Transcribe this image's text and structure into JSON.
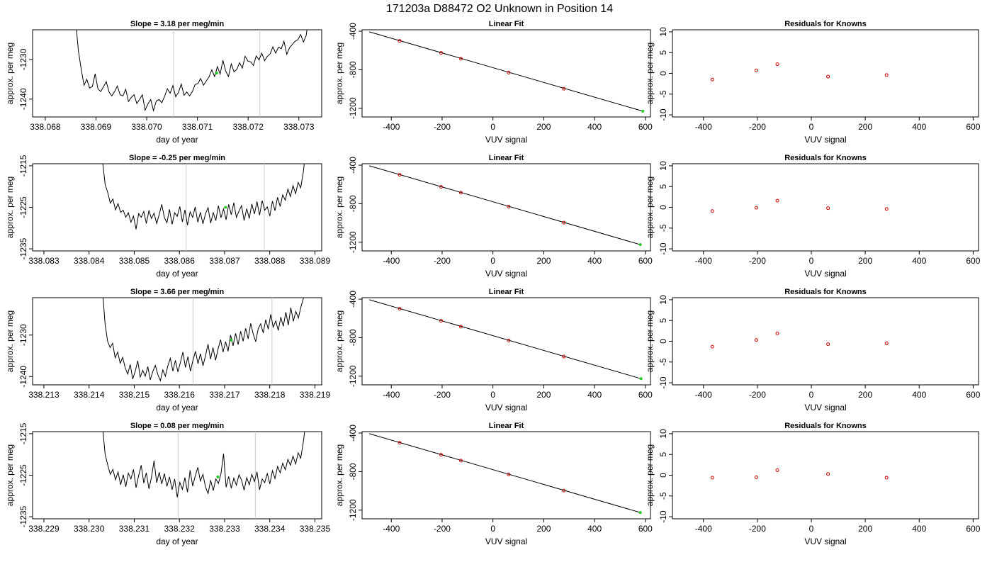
{
  "title": "171203a     D88472   O2 Unknown in Position  14",
  "colors": {
    "trace": "#000000",
    "known_marker": "#cc0000",
    "unknown_marker": "#22cc22",
    "marker_line": "#c8c8c8",
    "fit_line": "#000000"
  },
  "rows": [
    {
      "slope_title": "Slope =  3.18  per meg/min",
      "time": {
        "xlabel": "day of year",
        "ylabel": "approx. per meg",
        "xlim": [
          338.06775,
          338.07345
        ],
        "ylim": [
          -1244.5,
          -1222.5
        ],
        "xticks": [
          "338.068",
          "338.069",
          "338.070",
          "338.071",
          "338.072",
          "338.073"
        ],
        "yticks": [
          "-1240",
          "-1230"
        ],
        "x_start": 338.0686,
        "x_end": 338.0732,
        "trace": [
          -1220.5,
          -1228.0,
          -1232.5,
          -1236.5,
          -1235.0,
          -1237.2,
          -1236.8,
          -1233.6,
          -1237.4,
          -1238.1,
          -1236.9,
          -1235.6,
          -1238.2,
          -1239.2,
          -1238.1,
          -1236.7,
          -1238.9,
          -1239.2,
          -1237.5,
          -1240.6,
          -1239.6,
          -1238.9,
          -1241.1,
          -1240.1,
          -1238.9,
          -1242.8,
          -1241.2,
          -1240.1,
          -1242.9,
          -1240.5,
          -1240.1,
          -1240.9,
          -1239.3,
          -1237.4,
          -1238.5,
          -1236.6,
          -1239.4,
          -1238.3,
          -1236.2,
          -1239.0,
          -1238.2,
          -1239.2,
          -1238.1,
          -1236.3,
          -1236.1,
          -1234.8,
          -1236.5,
          -1235.4,
          -1234.4,
          -1232.6,
          -1234.3,
          -1231.8,
          -1233.7,
          -1230.2,
          -1232.9,
          -1234.3,
          -1231.1,
          -1233.1,
          -1232.5,
          -1230.8,
          -1232.2,
          -1229.2,
          -1230.4,
          -1230.6,
          -1231.5,
          -1229.1,
          -1230.1,
          -1228.4,
          -1230.3,
          -1229.2,
          -1228.6,
          -1226.8,
          -1228.4,
          -1226.9,
          -1227.3,
          -1225.4,
          -1228.7,
          -1227.0,
          -1226.2,
          -1225.4,
          -1225.0,
          -1223.7,
          -1225.6,
          -1223.9,
          -1218.5
        ],
        "vlines": [
          338.07053,
          338.07223
        ],
        "unknown_point": {
          "x": 338.07138,
          "y": -1233.4
        }
      },
      "fit": {
        "title": "Linear Fit",
        "xlabel": "VUV signal",
        "ylabel": "approx. per meg",
        "xlim": [
          -515,
          620
        ],
        "ylim": [
          -1290,
          -385
        ],
        "xticks": [
          -400,
          -200,
          0,
          200,
          400,
          600
        ],
        "yticks": [
          -400,
          -800,
          -1200
        ],
        "line": [
          [
            -487,
            -406
          ],
          [
            590,
            -1230
          ]
        ],
        "knowns": [
          [
            -367,
            -500
          ],
          [
            -204,
            -625
          ],
          [
            -126,
            -686
          ],
          [
            62,
            -830
          ],
          [
            279,
            -997
          ]
        ],
        "unknown": [
          590,
          -1230
        ]
      },
      "resid": {
        "title": "Residuals for Knowns",
        "xlabel": "VUV signal",
        "ylabel": "approx. per meg",
        "xlim": [
          -515,
          620
        ],
        "ylim": [
          -10.5,
          10.5
        ],
        "xticks": [
          -400,
          -200,
          0,
          200,
          400,
          600
        ],
        "yticks": [
          -10,
          -5,
          0,
          5,
          10
        ],
        "points": [
          [
            -367,
            -1.5
          ],
          [
            -204,
            0.7
          ],
          [
            -126,
            2.2
          ],
          [
            62,
            -0.8
          ],
          [
            279,
            -0.4
          ]
        ]
      }
    },
    {
      "slope_title": "Slope =  -0.25  per meg/min",
      "time": {
        "xlabel": "day of year",
        "ylabel": "approx. per meg",
        "xlim": [
          338.08275,
          338.08915
        ],
        "ylim": [
          -1235.5,
          -1214.5
        ],
        "xticks": [
          "338.083",
          "338.084",
          "338.085",
          "338.086",
          "338.087",
          "338.088",
          "338.089"
        ],
        "yticks": [
          "-1235",
          "-1225",
          "-1215"
        ],
        "x_start": 338.0843,
        "x_end": 338.0888,
        "trace": [
          -1214.0,
          -1219.5,
          -1221.5,
          -1224.0,
          -1223.0,
          -1225.6,
          -1224.1,
          -1226.2,
          -1225.7,
          -1227.4,
          -1226.3,
          -1228.6,
          -1227.1,
          -1230.3,
          -1226.5,
          -1227.4,
          -1226.0,
          -1228.9,
          -1225.8,
          -1227.7,
          -1226.4,
          -1228.9,
          -1226.7,
          -1224.3,
          -1227.5,
          -1228.7,
          -1225.5,
          -1229.1,
          -1226.3,
          -1227.2,
          -1224.8,
          -1228.5,
          -1225.6,
          -1229.3,
          -1226.1,
          -1227.4,
          -1224.9,
          -1228.6,
          -1226.2,
          -1229.0,
          -1226.5,
          -1225.1,
          -1228.8,
          -1226.3,
          -1228.2,
          -1224.6,
          -1227.5,
          -1225.4,
          -1228.0,
          -1224.3,
          -1226.8,
          -1223.9,
          -1227.4,
          -1225.9,
          -1224.6,
          -1228.2,
          -1225.3,
          -1227.7,
          -1224.2,
          -1226.6,
          -1223.6,
          -1226.9,
          -1223.4,
          -1225.7,
          -1224.9,
          -1227.1,
          -1223.5,
          -1225.8,
          -1222.6,
          -1224.8,
          -1222.0,
          -1223.3,
          -1220.6,
          -1222.4,
          -1219.8,
          -1221.7,
          -1219.0,
          -1220.3,
          -1216.5,
          -1211.0
        ],
        "vlines": [
          338.08615,
          338.08788
        ],
        "unknown_point": {
          "x": 338.08702,
          "y": -1225.0
        }
      },
      "fit": {
        "title": "Linear Fit",
        "xlabel": "VUV signal",
        "ylabel": "approx. per meg",
        "xlim": [
          -515,
          620
        ],
        "ylim": [
          -1290,
          -385
        ],
        "xticks": [
          -400,
          -200,
          0,
          200,
          400,
          600
        ],
        "yticks": [
          -400,
          -800,
          -1200
        ],
        "line": [
          [
            -487,
            -406
          ],
          [
            580,
            -1225
          ]
        ],
        "knowns": [
          [
            -367,
            -500
          ],
          [
            -204,
            -625
          ],
          [
            -126,
            -686
          ],
          [
            62,
            -830
          ],
          [
            279,
            -997
          ]
        ],
        "unknown": [
          580,
          -1225
        ]
      },
      "resid": {
        "title": "Residuals for Knowns",
        "xlabel": "VUV signal",
        "ylabel": "approx. per meg",
        "xlim": [
          -515,
          620
        ],
        "ylim": [
          -10.5,
          10.5
        ],
        "xticks": [
          -400,
          -200,
          0,
          200,
          400,
          600
        ],
        "yticks": [
          -10,
          -5,
          0,
          5,
          10
        ],
        "points": [
          [
            -367,
            -0.9
          ],
          [
            -204,
            -0.1
          ],
          [
            -126,
            1.6
          ],
          [
            62,
            -0.2
          ],
          [
            279,
            -0.4
          ]
        ]
      }
    },
    {
      "slope_title": "Slope =  3.66  per meg/min",
      "time": {
        "xlabel": "day of year",
        "ylabel": "approx. per meg",
        "xlim": [
          338.21275,
          338.21915
        ],
        "ylim": [
          -1242.0,
          -1221.0
        ],
        "xticks": [
          "338.213",
          "338.214",
          "338.215",
          "338.216",
          "338.217",
          "338.218",
          "338.219"
        ],
        "yticks": [
          "-1240",
          "-1230"
        ],
        "x_start": 338.2143,
        "x_end": 338.2188,
        "trace": [
          -1219.5,
          -1227.5,
          -1231.5,
          -1233.0,
          -1232.0,
          -1235.5,
          -1234.1,
          -1236.8,
          -1235.4,
          -1237.9,
          -1239.4,
          -1237.1,
          -1240.6,
          -1238.7,
          -1236.2,
          -1240.1,
          -1238.5,
          -1239.9,
          -1237.6,
          -1240.8,
          -1238.8,
          -1237.3,
          -1239.5,
          -1241.0,
          -1238.4,
          -1239.9,
          -1237.4,
          -1235.6,
          -1238.7,
          -1236.1,
          -1238.9,
          -1236.6,
          -1234.1,
          -1237.8,
          -1235.2,
          -1238.7,
          -1236.1,
          -1233.9,
          -1236.9,
          -1234.5,
          -1237.4,
          -1235.0,
          -1232.2,
          -1235.8,
          -1233.0,
          -1236.1,
          -1233.4,
          -1231.1,
          -1234.1,
          -1231.6,
          -1233.9,
          -1230.0,
          -1232.6,
          -1229.6,
          -1232.3,
          -1229.1,
          -1231.5,
          -1228.4,
          -1230.9,
          -1227.2,
          -1229.7,
          -1231.6,
          -1228.5,
          -1227.3,
          -1229.5,
          -1226.3,
          -1228.6,
          -1225.0,
          -1228.1,
          -1226.6,
          -1228.9,
          -1225.7,
          -1227.9,
          -1224.5,
          -1227.6,
          -1223.4,
          -1226.7,
          -1224.3,
          -1225.9,
          -1223.3,
          -1221.2,
          -1219.0
        ],
        "vlines": [
          338.2163,
          338.21805
        ],
        "unknown_point": {
          "x": 338.21715,
          "y": -1231.2
        }
      },
      "fit": {
        "title": "Linear Fit",
        "xlabel": "VUV signal",
        "ylabel": "approx. per meg",
        "xlim": [
          -515,
          620
        ],
        "ylim": [
          -1290,
          -385
        ],
        "xticks": [
          -400,
          -200,
          0,
          200,
          400,
          600
        ],
        "yticks": [
          -400,
          -800,
          -1200
        ],
        "line": [
          [
            -487,
            -406
          ],
          [
            583,
            -1226
          ]
        ],
        "knowns": [
          [
            -367,
            -500
          ],
          [
            -204,
            -625
          ],
          [
            -126,
            -686
          ],
          [
            62,
            -830
          ],
          [
            279,
            -997
          ]
        ],
        "unknown": [
          583,
          -1226
        ]
      },
      "resid": {
        "title": "Residuals for Knowns",
        "xlabel": "VUV signal",
        "ylabel": "approx. per meg",
        "xlim": [
          -515,
          620
        ],
        "ylim": [
          -10.5,
          10.5
        ],
        "xticks": [
          -400,
          -200,
          0,
          200,
          400,
          600
        ],
        "yticks": [
          -10,
          -5,
          0,
          5,
          10
        ],
        "points": [
          [
            -367,
            -1.3
          ],
          [
            -204,
            0.3
          ],
          [
            -126,
            1.9
          ],
          [
            62,
            -0.7
          ],
          [
            279,
            -0.5
          ]
        ]
      }
    },
    {
      "slope_title": "Slope =  0.08  per meg/min",
      "time": {
        "xlabel": "day of year",
        "ylabel": "approx. per meg",
        "xlim": [
          338.22875,
          338.23515
        ],
        "ylim": [
          -1235.5,
          -1214.5
        ],
        "xticks": [
          "338.229",
          "338.230",
          "338.231",
          "338.232",
          "338.233",
          "338.234",
          "338.235"
        ],
        "yticks": [
          "-1235",
          "-1225",
          "-1215"
        ],
        "x_start": 338.2303,
        "x_end": 338.2348,
        "trace": [
          -1213.5,
          -1220.0,
          -1222.6,
          -1224.8,
          -1223.6,
          -1226.1,
          -1224.2,
          -1227.3,
          -1224.9,
          -1227.8,
          -1224.5,
          -1225.9,
          -1223.6,
          -1228.0,
          -1225.1,
          -1222.6,
          -1226.9,
          -1224.4,
          -1228.3,
          -1225.5,
          -1221.5,
          -1226.8,
          -1224.3,
          -1227.1,
          -1224.6,
          -1227.7,
          -1225.4,
          -1228.5,
          -1225.9,
          -1230.3,
          -1226.7,
          -1228.4,
          -1225.6,
          -1229.1,
          -1223.8,
          -1227.6,
          -1225.2,
          -1223.1,
          -1226.4,
          -1224.8,
          -1227.9,
          -1229.4,
          -1226.2,
          -1228.7,
          -1225.9,
          -1227.0,
          -1224.6,
          -1219.8,
          -1227.9,
          -1225.3,
          -1228.1,
          -1225.7,
          -1227.4,
          -1224.9,
          -1226.2,
          -1228.6,
          -1225.6,
          -1227.3,
          -1224.8,
          -1226.5,
          -1224.2,
          -1228.5,
          -1225.9,
          -1226.8,
          -1224.6,
          -1227.1,
          -1223.9,
          -1225.8,
          -1222.9,
          -1224.4,
          -1222.1,
          -1223.7,
          -1221.2,
          -1222.6,
          -1220.4,
          -1222.3,
          -1219.6,
          -1220.9,
          -1217.0,
          -1212.0
        ],
        "vlines": [
          338.23197,
          338.23368
        ],
        "unknown_point": {
          "x": 338.23285,
          "y": -1225.4
        }
      },
      "fit": {
        "title": "Linear Fit",
        "xlabel": "VUV signal",
        "ylabel": "approx. per meg",
        "xlim": [
          -515,
          620
        ],
        "ylim": [
          -1290,
          -385
        ],
        "xticks": [
          -400,
          -200,
          0,
          200,
          400,
          600
        ],
        "yticks": [
          -400,
          -800,
          -1200
        ],
        "line": [
          [
            -487,
            -406
          ],
          [
            580,
            -1225
          ]
        ],
        "knowns": [
          [
            -367,
            -500
          ],
          [
            -204,
            -625
          ],
          [
            -126,
            -686
          ],
          [
            62,
            -830
          ],
          [
            279,
            -997
          ]
        ],
        "unknown": [
          580,
          -1225
        ]
      },
      "resid": {
        "title": "Residuals for Knowns",
        "xlabel": "VUV signal",
        "ylabel": "approx. per meg",
        "xlim": [
          -515,
          620
        ],
        "ylim": [
          -10.5,
          10.5
        ],
        "xticks": [
          -400,
          -200,
          0,
          200,
          400,
          600
        ],
        "yticks": [
          -10,
          -5,
          0,
          5,
          10
        ],
        "points": [
          [
            -367,
            -0.6
          ],
          [
            -204,
            -0.5
          ],
          [
            -126,
            1.2
          ],
          [
            62,
            0.3
          ],
          [
            279,
            -0.6
          ]
        ]
      }
    }
  ],
  "chart_data": {
    "type": "line",
    "title": "171203a     D88472   O2 Unknown in Position  14",
    "panels": [
      "time series (day of year vs approx. per meg)",
      "Linear Fit (VUV signal vs approx. per meg)",
      "Residuals for Knowns (VUV signal vs approx. per meg)"
    ],
    "grid": false
  }
}
